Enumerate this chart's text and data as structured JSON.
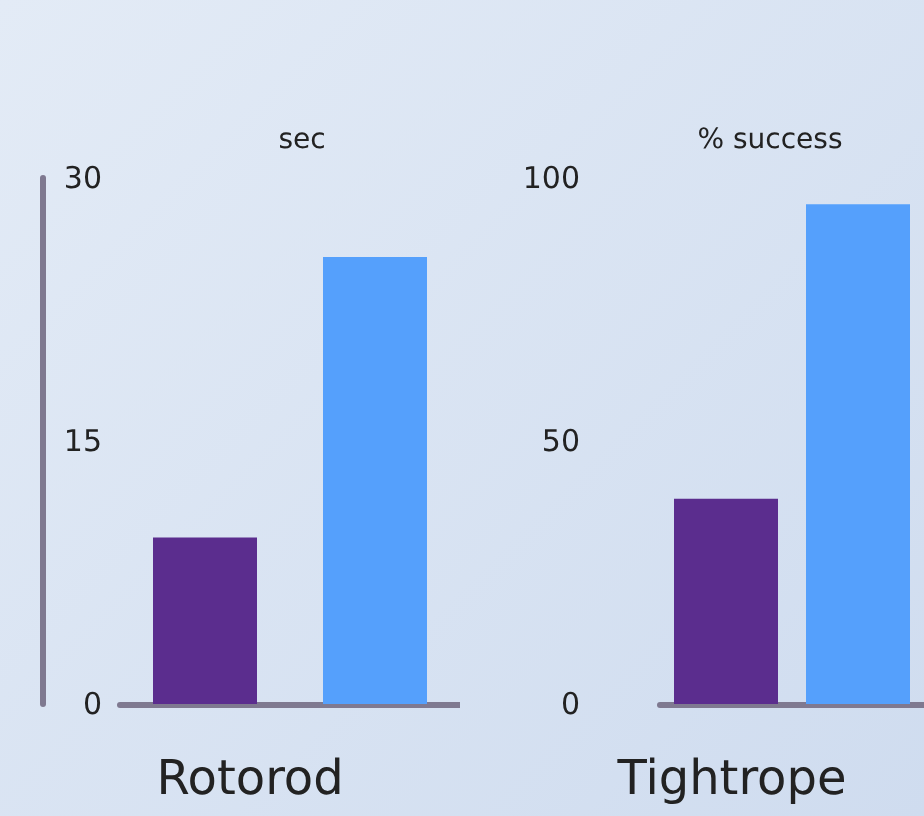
{
  "chart_data": [
    {
      "type": "bar",
      "xlabel": "Rotorod",
      "ylabel": "sec",
      "categories": [
        null,
        null
      ],
      "colors": [
        "#5b2d8e",
        "#55a0fc"
      ],
      "values": [
        9.5,
        25.5
      ],
      "ylim": [
        0,
        30
      ],
      "yticks": [
        0,
        15,
        30
      ],
      "grid": false
    },
    {
      "type": "bar",
      "xlabel": "Tightrope",
      "ylabel": "% success",
      "categories": [
        null,
        null
      ],
      "colors": [
        "#5b2d8e",
        "#55a0fc"
      ],
      "values": [
        39,
        95
      ],
      "ylim": [
        0,
        100
      ],
      "yticks": [
        0,
        50,
        100
      ],
      "grid": false
    }
  ]
}
